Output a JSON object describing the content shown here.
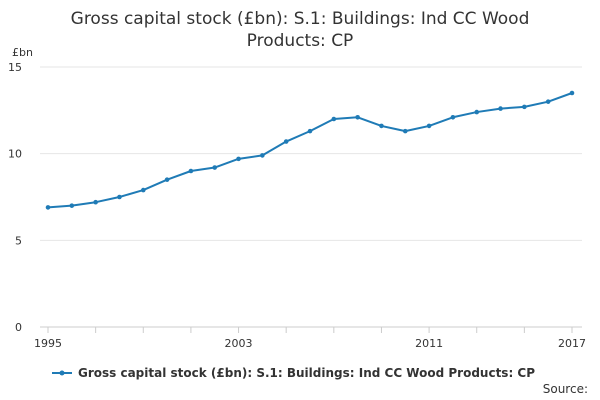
{
  "chart_data": {
    "type": "line",
    "title_lines": [
      "Gross capital stock (£bn): S.1: Buildings: Ind CC Wood",
      "Products: CP"
    ],
    "ylabel": "£bn",
    "xlabel": "",
    "ylim": [
      0,
      15
    ],
    "yticks": [
      "0",
      "5",
      "10",
      "15"
    ],
    "xlim": [
      1995,
      2017
    ],
    "xticks": [
      "1995",
      "2003",
      "2011",
      "2017"
    ],
    "grid": true,
    "legend_placement": "bottom",
    "series": [
      {
        "name": "Gross capital stock (£bn): S.1: Buildings: Ind CC Wood Products: CP",
        "color": "#1f7bb6",
        "x": [
          1995,
          1996,
          1997,
          1998,
          1999,
          2000,
          2001,
          2002,
          2003,
          2004,
          2005,
          2006,
          2007,
          2008,
          2009,
          2010,
          2011,
          2012,
          2013,
          2014,
          2015,
          2016,
          2017
        ],
        "values": [
          6.9,
          7.0,
          7.2,
          7.5,
          7.9,
          8.5,
          9.0,
          9.2,
          9.7,
          9.9,
          10.7,
          11.3,
          12.0,
          12.1,
          11.6,
          11.3,
          11.6,
          12.1,
          12.4,
          12.6,
          12.7,
          13.0,
          13.5
        ]
      }
    ],
    "source_label": "Source:"
  }
}
